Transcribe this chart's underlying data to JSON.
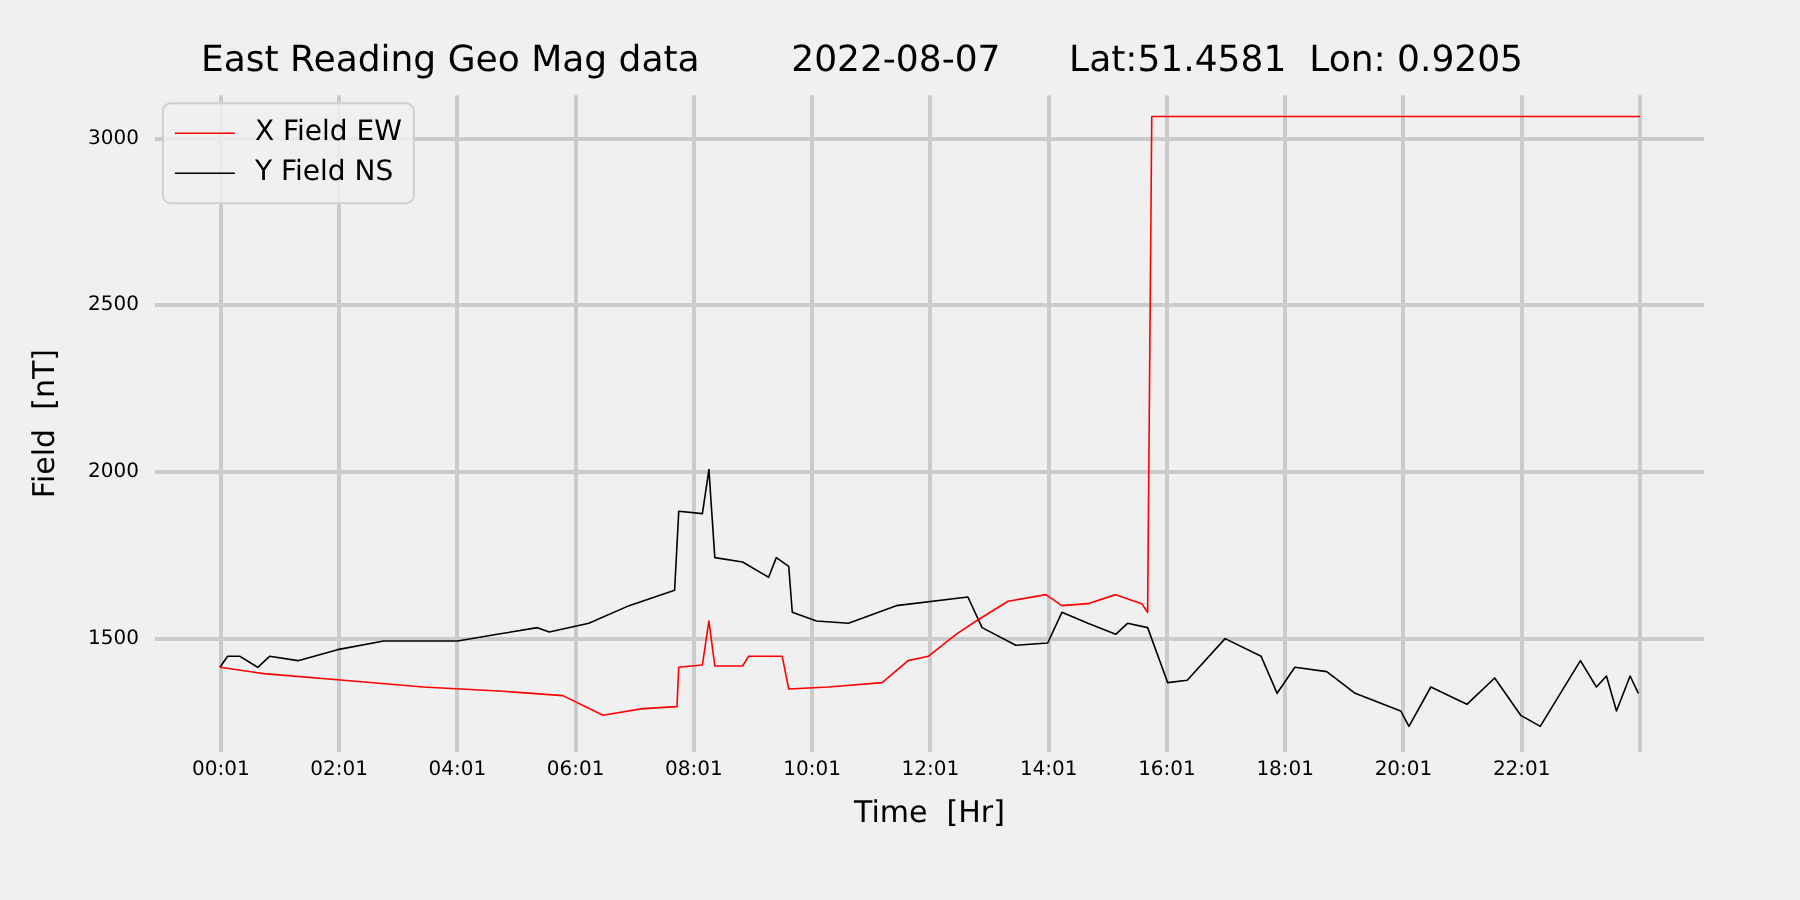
{
  "chart_data": {
    "type": "line",
    "title": "East Reading Geo Mag data        2022-08-07      Lat:51.4581  Lon: 0.9205",
    "xlabel": "Time  [Hr]",
    "ylabel": "Field  [nT]",
    "series": [
      {
        "name": "X Field EW",
        "color": "#ff0000",
        "x": [
          0,
          0.74,
          2.09,
          3.44,
          4.79,
          5.8,
          6.48,
          7.15,
          7.73,
          7.76,
          8.16,
          8.27,
          8.37,
          8.84,
          8.94,
          9.51,
          9.62,
          10.29,
          11.2,
          11.64,
          11.98,
          12.45,
          12.79,
          13.33,
          13.97,
          14.24,
          14.68,
          15.15,
          15.59,
          15.69,
          15.76,
          24.02
        ],
        "values": [
          1414,
          1395,
          1375,
          1355,
          1342,
          1329,
          1270,
          1290,
          1296,
          1414,
          1421,
          1553,
          1418,
          1418,
          1447,
          1447,
          1349,
          1355,
          1368,
          1434,
          1447,
          1513,
          1553,
          1612,
          1632,
          1599,
          1605,
          1632,
          1605,
          1579,
          3066,
          3066
        ]
      },
      {
        "name": "Y Field NS",
        "color": "#000000",
        "x": [
          0,
          0.13,
          0.34,
          0.64,
          0.84,
          1.32,
          1.99,
          2.77,
          4.02,
          4.69,
          5.37,
          5.57,
          6.24,
          6.92,
          7.69,
          7.76,
          8.16,
          8.27,
          8.37,
          8.84,
          9.28,
          9.41,
          9.62,
          9.68,
          10.09,
          10.63,
          11.44,
          12.65,
          12.89,
          13.46,
          14.0,
          14.24,
          14.68,
          15.15,
          15.35,
          15.69,
          16.03,
          16.36,
          17.0,
          17.61,
          17.88,
          18.18,
          18.72,
          19.2,
          19.97,
          20.11,
          20.48,
          21.09,
          21.56,
          22.0,
          22.33,
          23.01,
          23.28,
          23.45,
          23.62,
          23.85,
          23.99
        ],
        "values": [
          1414,
          1447,
          1447,
          1414,
          1447,
          1434,
          1467,
          1493,
          1493,
          1513,
          1533,
          1520,
          1546,
          1599,
          1645,
          1882,
          1875,
          2007,
          1743,
          1730,
          1684,
          1743,
          1717,
          1579,
          1553,
          1546,
          1599,
          1625,
          1533,
          1480,
          1487,
          1579,
          1546,
          1513,
          1546,
          1533,
          1368,
          1375,
          1500,
          1447,
          1336,
          1414,
          1401,
          1336,
          1283,
          1237,
          1355,
          1303,
          1382,
          1270,
          1237,
          1434,
          1355,
          1388,
          1283,
          1388,
          1336
        ]
      }
    ],
    "xlim": [
      -1.1,
      25.1
    ],
    "ylim": [
      1160,
      3130
    ],
    "xticks": [
      {
        "value": 0.0167,
        "label": "00:01"
      },
      {
        "value": 2.0167,
        "label": "02:01"
      },
      {
        "value": 4.0167,
        "label": "04:01"
      },
      {
        "value": 6.0167,
        "label": "06:01"
      },
      {
        "value": 8.0167,
        "label": "08:01"
      },
      {
        "value": 10.0167,
        "label": "10:01"
      },
      {
        "value": 12.0167,
        "label": "12:01"
      },
      {
        "value": 14.0167,
        "label": "14:01"
      },
      {
        "value": 16.0167,
        "label": "16:01"
      },
      {
        "value": 18.0167,
        "label": "18:01"
      },
      {
        "value": 20.0167,
        "label": "20:01"
      },
      {
        "value": 22.0167,
        "label": "22:01"
      },
      {
        "value": 24.0167,
        "label": null
      }
    ],
    "yticks": [
      1500,
      2000,
      2500,
      3000
    ],
    "grid": true,
    "legend": "top left",
    "marker": "none",
    "line_style": "solid"
  }
}
